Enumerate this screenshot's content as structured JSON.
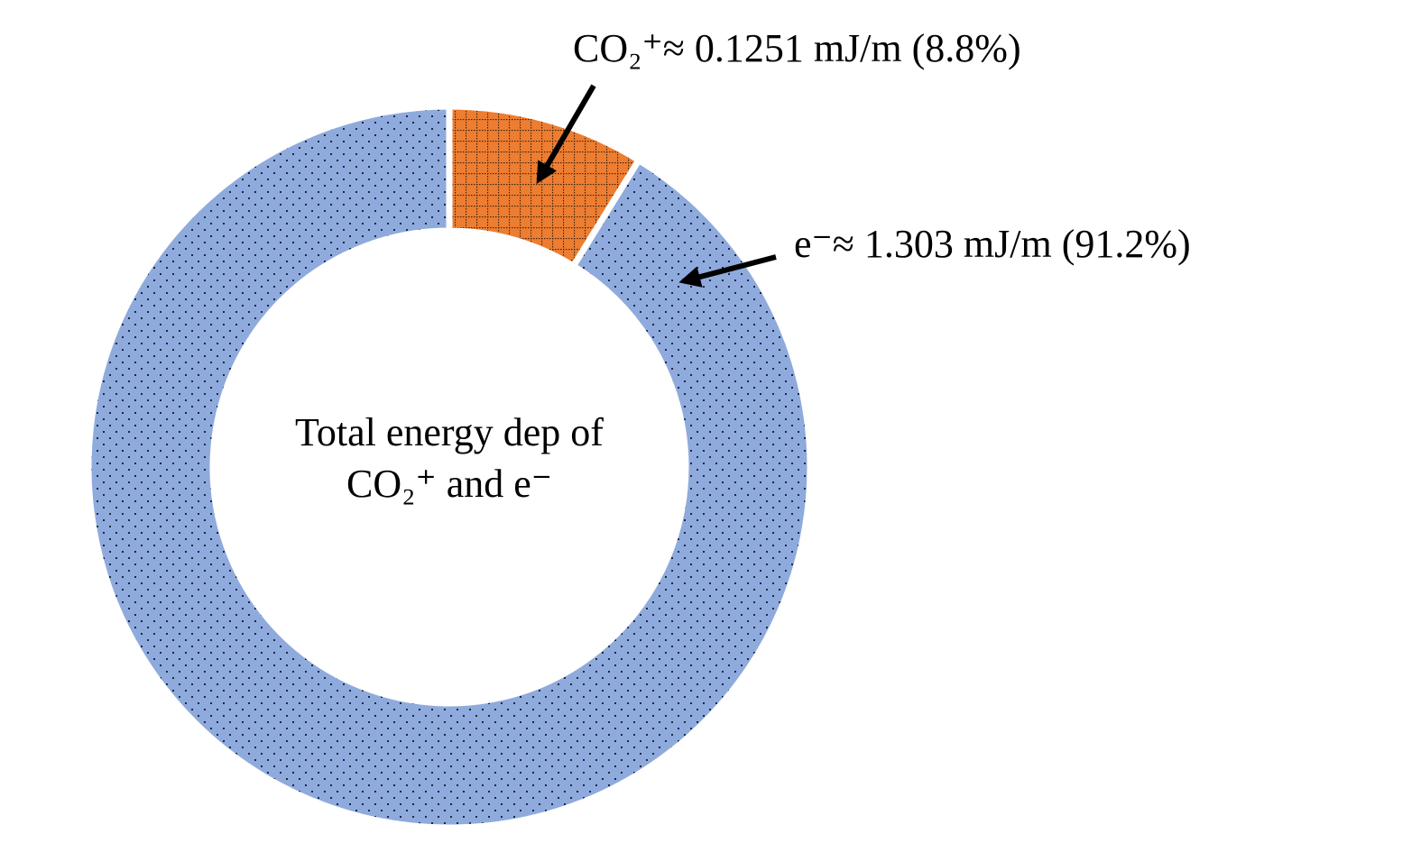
{
  "chart_data": {
    "type": "donut",
    "values": [
      8.8,
      91.2
    ],
    "value_labels": [
      "CO₂⁺≈ 0.1251 mJ/m (8.8%)",
      "e⁻≈ 1.303 mJ/m (91.2%)"
    ],
    "colors": [
      "#ed7d31",
      "#8faadc"
    ],
    "center_label": [
      "Total energy dep of",
      "CO₂⁺ and e⁻"
    ]
  }
}
